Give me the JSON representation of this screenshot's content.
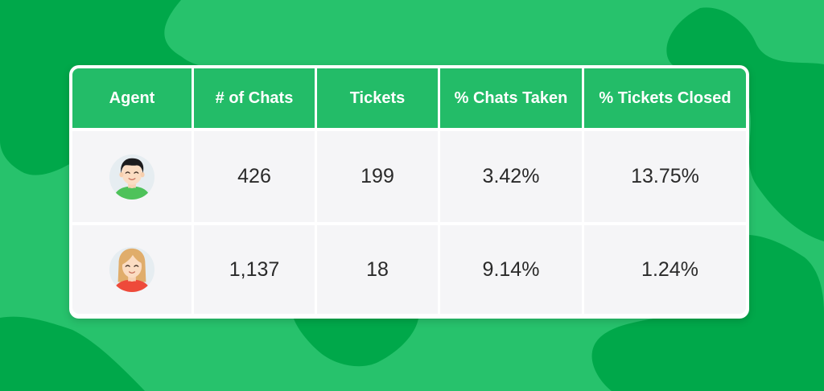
{
  "colors": {
    "background": "#27c26c",
    "background_shapes": "#00a84a",
    "header": "#23bc68",
    "row_bg": "#f5f5f7",
    "text": "#2a2a2a"
  },
  "table": {
    "headers": [
      "Agent",
      "# of Chats",
      "Tickets",
      "% Chats Taken",
      "% Tickets Closed"
    ],
    "rows": [
      {
        "agent_icon": "male-agent-avatar-icon",
        "chats": "426",
        "tickets": "199",
        "chats_taken": "3.42%",
        "tickets_closed": "13.75%"
      },
      {
        "agent_icon": "female-agent-avatar-icon",
        "chats": "1,137",
        "tickets": "18",
        "chats_taken": "9.14%",
        "tickets_closed": "1.24%"
      }
    ]
  }
}
